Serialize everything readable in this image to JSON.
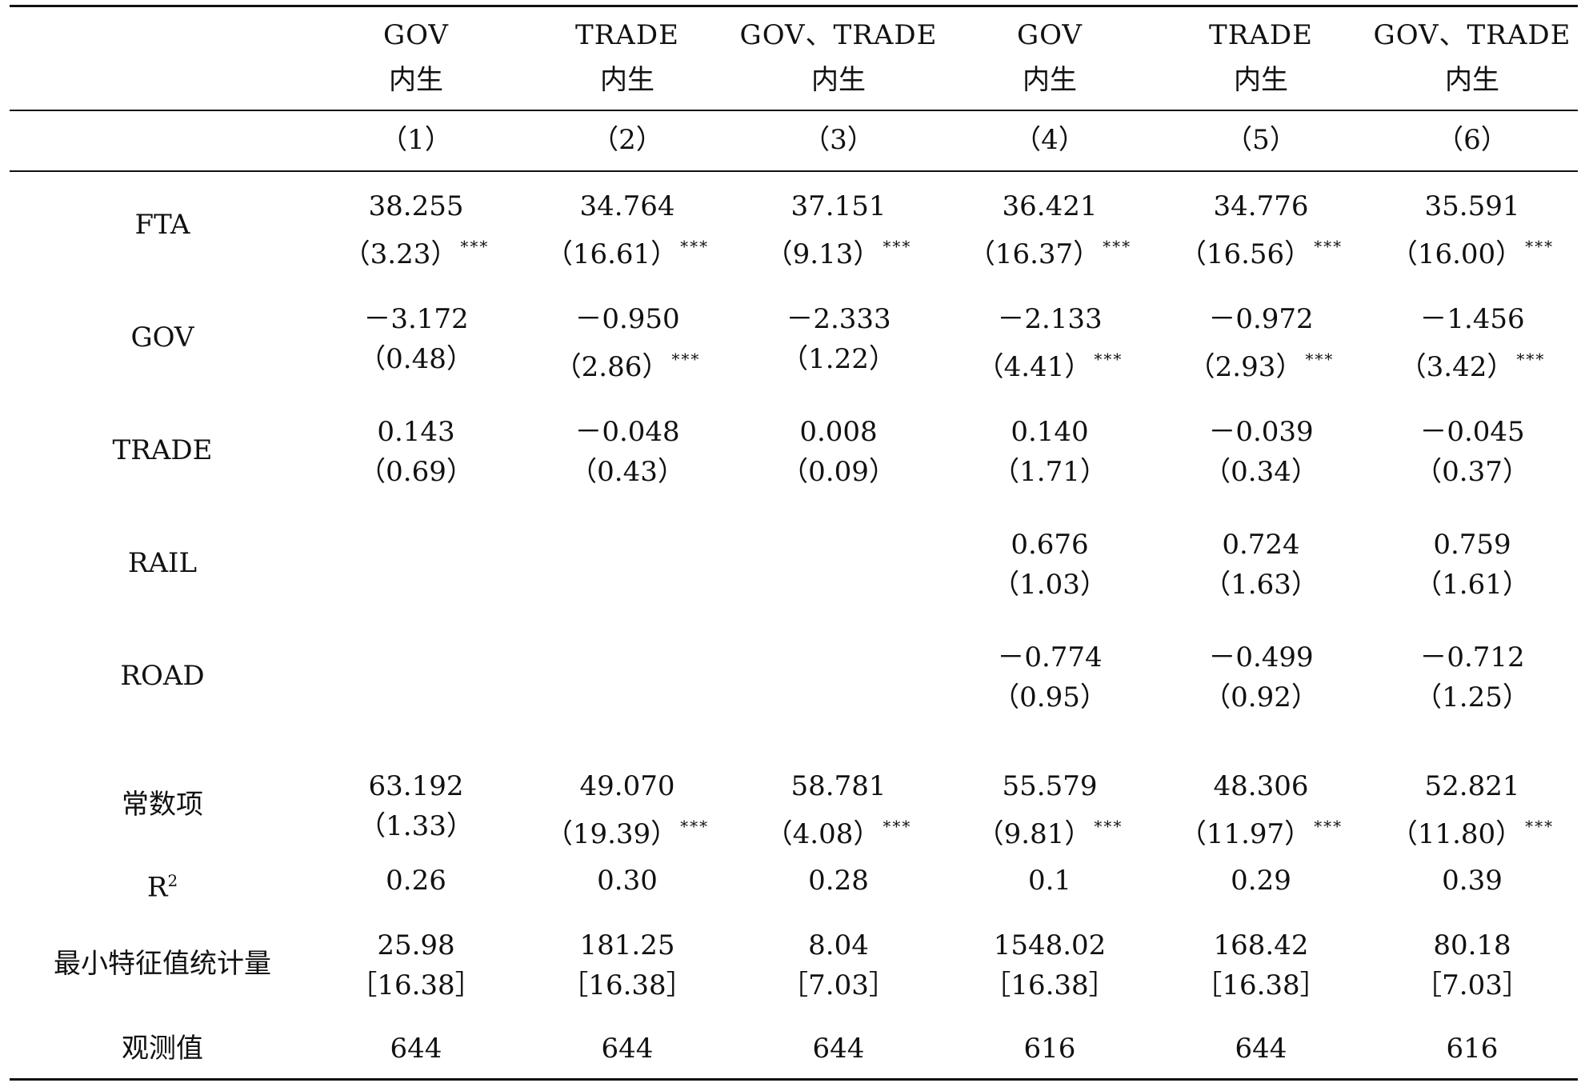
{
  "columns": [
    {
      "var": "GOV",
      "type": "内生",
      "num": "（1）"
    },
    {
      "var": "TRADE",
      "type": "内生",
      "num": "（2）"
    },
    {
      "var": "GOV、TRADE",
      "type": "内生",
      "num": "（3）"
    },
    {
      "var": "GOV",
      "type": "内生",
      "num": "（4）"
    },
    {
      "var": "TRADE",
      "type": "内生",
      "num": "（5）"
    },
    {
      "var": "GOV、TRADE",
      "type": "内生",
      "num": "（6）"
    }
  ],
  "rows": [
    {
      "label": "FTA",
      "cells": [
        {
          "v": "38.255",
          "s": "（3.23）",
          "sig": "***"
        },
        {
          "v": "34.764",
          "s": "（16.61）",
          "sig": "***"
        },
        {
          "v": "37.151",
          "s": "（9.13）",
          "sig": "***"
        },
        {
          "v": "36.421",
          "s": "（16.37）",
          "sig": "***"
        },
        {
          "v": "34.776",
          "s": "（16.56）",
          "sig": "***"
        },
        {
          "v": "35.591",
          "s": "（16.00）",
          "sig": "***"
        }
      ]
    },
    {
      "label": "GOV",
      "cells": [
        {
          "v": "－3.172",
          "s": "（0.48）",
          "sig": ""
        },
        {
          "v": "－0.950",
          "s": "（2.86）",
          "sig": "***"
        },
        {
          "v": "－2.333",
          "s": "（1.22）",
          "sig": ""
        },
        {
          "v": "－2.133",
          "s": "（4.41）",
          "sig": "***"
        },
        {
          "v": "－0.972",
          "s": "（2.93）",
          "sig": "***"
        },
        {
          "v": "－1.456",
          "s": "（3.42）",
          "sig": "***"
        }
      ]
    },
    {
      "label": "TRADE",
      "cells": [
        {
          "v": "0.143",
          "s": "（0.69）",
          "sig": ""
        },
        {
          "v": "－0.048",
          "s": "（0.43）",
          "sig": ""
        },
        {
          "v": "0.008",
          "s": "（0.09）",
          "sig": ""
        },
        {
          "v": "0.140",
          "s": "（1.71）",
          "sig": ""
        },
        {
          "v": "－0.039",
          "s": "（0.34）",
          "sig": ""
        },
        {
          "v": "－0.045",
          "s": "（0.37）",
          "sig": ""
        }
      ]
    },
    {
      "label": "RAIL",
      "cells": [
        {
          "v": "",
          "s": "",
          "sig": ""
        },
        {
          "v": "",
          "s": "",
          "sig": ""
        },
        {
          "v": "",
          "s": "",
          "sig": ""
        },
        {
          "v": "0.676",
          "s": "（1.03）",
          "sig": ""
        },
        {
          "v": "0.724",
          "s": "（1.63）",
          "sig": ""
        },
        {
          "v": "0.759",
          "s": "（1.61）",
          "sig": ""
        }
      ]
    },
    {
      "label": "ROAD",
      "cells": [
        {
          "v": "",
          "s": "",
          "sig": ""
        },
        {
          "v": "",
          "s": "",
          "sig": ""
        },
        {
          "v": "",
          "s": "",
          "sig": ""
        },
        {
          "v": "－0.774",
          "s": "（0.95）",
          "sig": ""
        },
        {
          "v": "－0.499",
          "s": "（0.92）",
          "sig": ""
        },
        {
          "v": "－0.712",
          "s": "（1.25）",
          "sig": ""
        }
      ]
    },
    {
      "label": "常数项",
      "cells": [
        {
          "v": "63.192",
          "s": "（1.33）",
          "sig": ""
        },
        {
          "v": "49.070",
          "s": "（19.39）",
          "sig": "***"
        },
        {
          "v": "58.781",
          "s": "（4.08）",
          "sig": "***"
        },
        {
          "v": "55.579",
          "s": "（9.81）",
          "sig": "***"
        },
        {
          "v": "48.306",
          "s": "（11.97）",
          "sig": "***"
        },
        {
          "v": "52.821",
          "s": "（11.80）",
          "sig": "***"
        }
      ]
    }
  ],
  "r2": {
    "label_base": "R",
    "label_sup": "2",
    "values": [
      "0.26",
      "0.30",
      "0.28",
      "0.1",
      "0.29",
      "0.39"
    ]
  },
  "eigen": {
    "label": "最小特征值统计量",
    "values": [
      {
        "v": "25.98",
        "c": "［16.38］"
      },
      {
        "v": "181.25",
        "c": "［16.38］"
      },
      {
        "v": "8.04",
        "c": "［7.03］"
      },
      {
        "v": "1548.02",
        "c": "［16.38］"
      },
      {
        "v": "168.42",
        "c": "［16.38］"
      },
      {
        "v": "80.18",
        "c": "［7.03］"
      }
    ]
  },
  "obs": {
    "label": "观测值",
    "values": [
      "644",
      "644",
      "644",
      "616",
      "644",
      "616"
    ]
  }
}
